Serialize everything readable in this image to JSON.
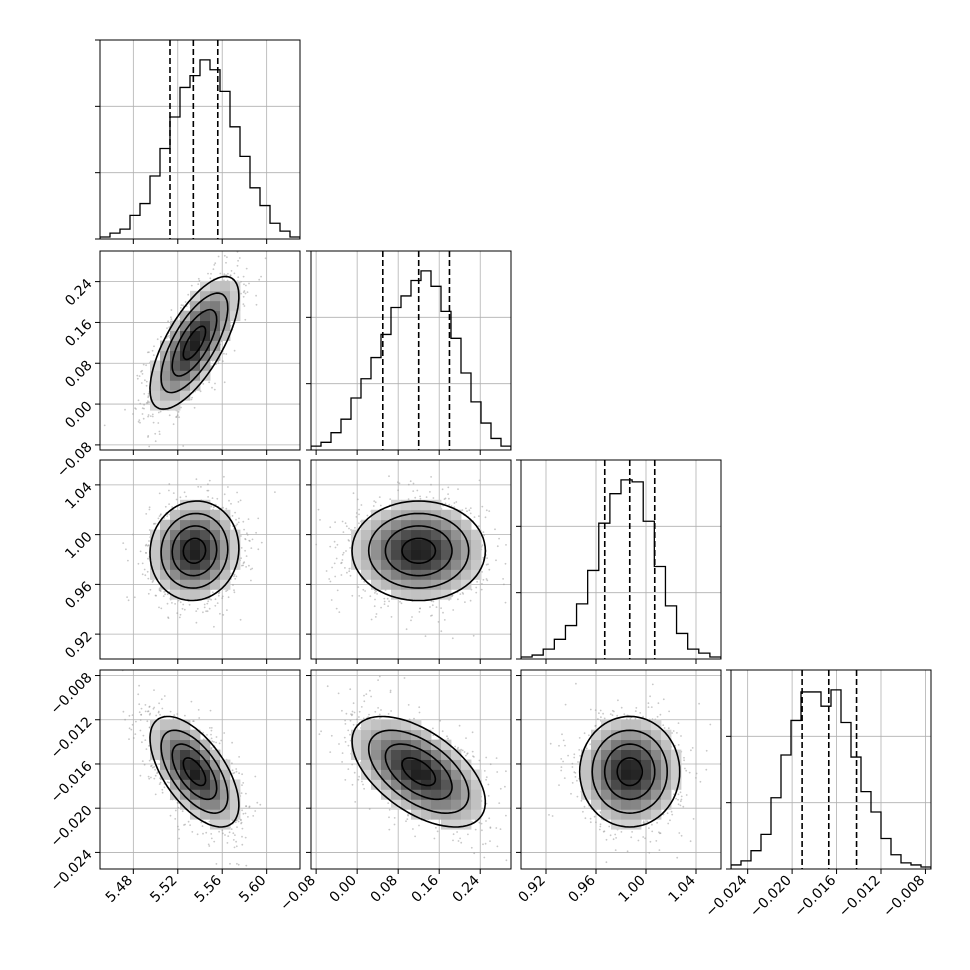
{
  "chart_data": {
    "type": "corner",
    "title": "",
    "n_params": 4,
    "params": [
      {
        "name": "",
        "range": [
          5.45,
          5.63
        ],
        "ticks": [
          5.48,
          5.52,
          5.56,
          5.6
        ],
        "tick_labels": [
          "5.48",
          "5.52",
          "5.56",
          "5.60"
        ],
        "quantiles": [
          5.513,
          5.534,
          5.556
        ],
        "mean": 5.535,
        "sd": 0.02,
        "hist_counts": [
          0.01,
          0.03,
          0.05,
          0.12,
          0.18,
          0.32,
          0.46,
          0.62,
          0.77,
          0.83,
          0.91,
          0.86,
          0.75,
          0.57,
          0.42,
          0.26,
          0.17,
          0.08,
          0.04,
          0.01
        ]
      },
      {
        "name": "",
        "range": [
          -0.09,
          0.3
        ],
        "ticks": [
          -0.08,
          0.0,
          0.08,
          0.16,
          0.24
        ],
        "tick_labels": [
          "−0.08",
          "0.00",
          "0.08",
          "0.16",
          "0.24"
        ],
        "quantiles": [
          0.05,
          0.12,
          0.18
        ],
        "mean": 0.12,
        "sd": 0.065,
        "hist_counts": [
          0.02,
          0.04,
          0.09,
          0.16,
          0.27,
          0.37,
          0.48,
          0.6,
          0.74,
          0.8,
          0.88,
          0.93,
          0.85,
          0.72,
          0.58,
          0.4,
          0.25,
          0.14,
          0.06,
          0.02
        ]
      },
      {
        "name": "",
        "range": [
          0.9,
          1.06
        ],
        "ticks": [
          0.92,
          0.96,
          1.0,
          1.04
        ],
        "tick_labels": [
          "0.92",
          "0.96",
          "1.00",
          "1.04"
        ],
        "quantiles": [
          0.967,
          0.987,
          1.007
        ],
        "mean": 0.987,
        "sd": 0.02,
        "hist_counts": [
          0.01,
          0.02,
          0.05,
          0.1,
          0.17,
          0.28,
          0.45,
          0.69,
          0.84,
          0.91,
          0.9,
          0.7,
          0.47,
          0.27,
          0.13,
          0.05,
          0.03,
          0.01
        ]
      },
      {
        "name": "",
        "range": [
          -0.0255,
          -0.0075
        ],
        "ticks": [
          -0.024,
          -0.02,
          -0.016,
          -0.012,
          -0.008
        ],
        "tick_labels": [
          "−0.024",
          "−0.020",
          "−0.016",
          "−0.012",
          "−0.008"
        ],
        "quantiles": [
          -0.0191,
          -0.0167,
          -0.0142
        ],
        "mean": -0.0167,
        "sd": 0.0025,
        "hist_counts": [
          0.02,
          0.04,
          0.09,
          0.17,
          0.35,
          0.56,
          0.73,
          0.87,
          0.87,
          0.8,
          0.88,
          0.72,
          0.55,
          0.38,
          0.28,
          0.15,
          0.07,
          0.03,
          0.02,
          0.01
        ]
      }
    ],
    "correlations": [
      [
        1.0,
        0.7,
        0.05,
        -0.6
      ],
      [
        0.7,
        1.0,
        0.0,
        -0.55
      ],
      [
        0.05,
        0.0,
        1.0,
        0.0
      ],
      [
        -0.6,
        -0.55,
        0.0,
        1.0
      ]
    ],
    "contour_levels_sigma": [
      0.5,
      1.0,
      1.5,
      2.0
    ],
    "grid": true,
    "legend": "none"
  }
}
